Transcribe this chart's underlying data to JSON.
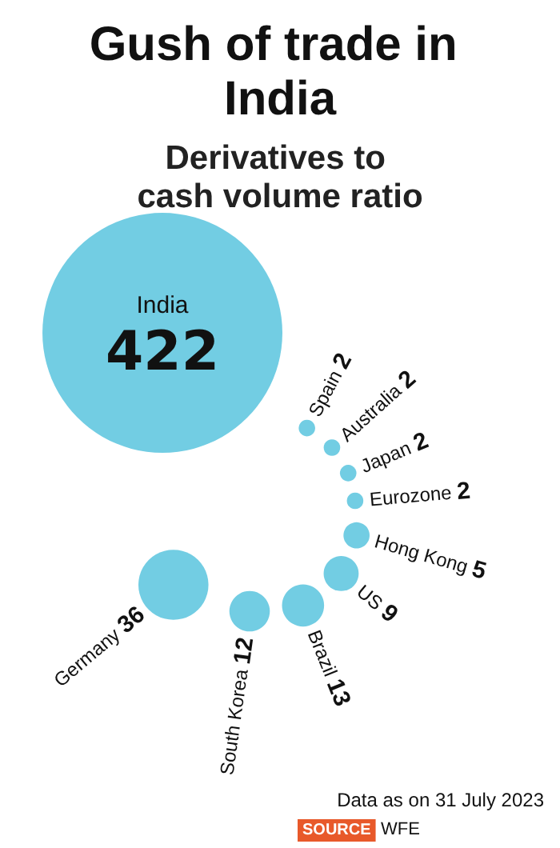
{
  "chart_data": {
    "type": "other",
    "title": "Gush of trade in India",
    "subtitle": "Derivatives to cash volume ratio",
    "categories": [
      "India",
      "Spain",
      "Australia",
      "Japan",
      "Eurozone",
      "Hong Kong",
      "US",
      "Brazil",
      "South Korea",
      "Germany"
    ],
    "values": [
      422,
      2,
      2,
      2,
      2,
      5,
      9,
      13,
      12,
      36
    ],
    "color": "#72cde3",
    "data_labels": true,
    "annotations": [
      "Data as on 31 July 2023",
      "SOURCE",
      "WFE"
    ]
  }
}
